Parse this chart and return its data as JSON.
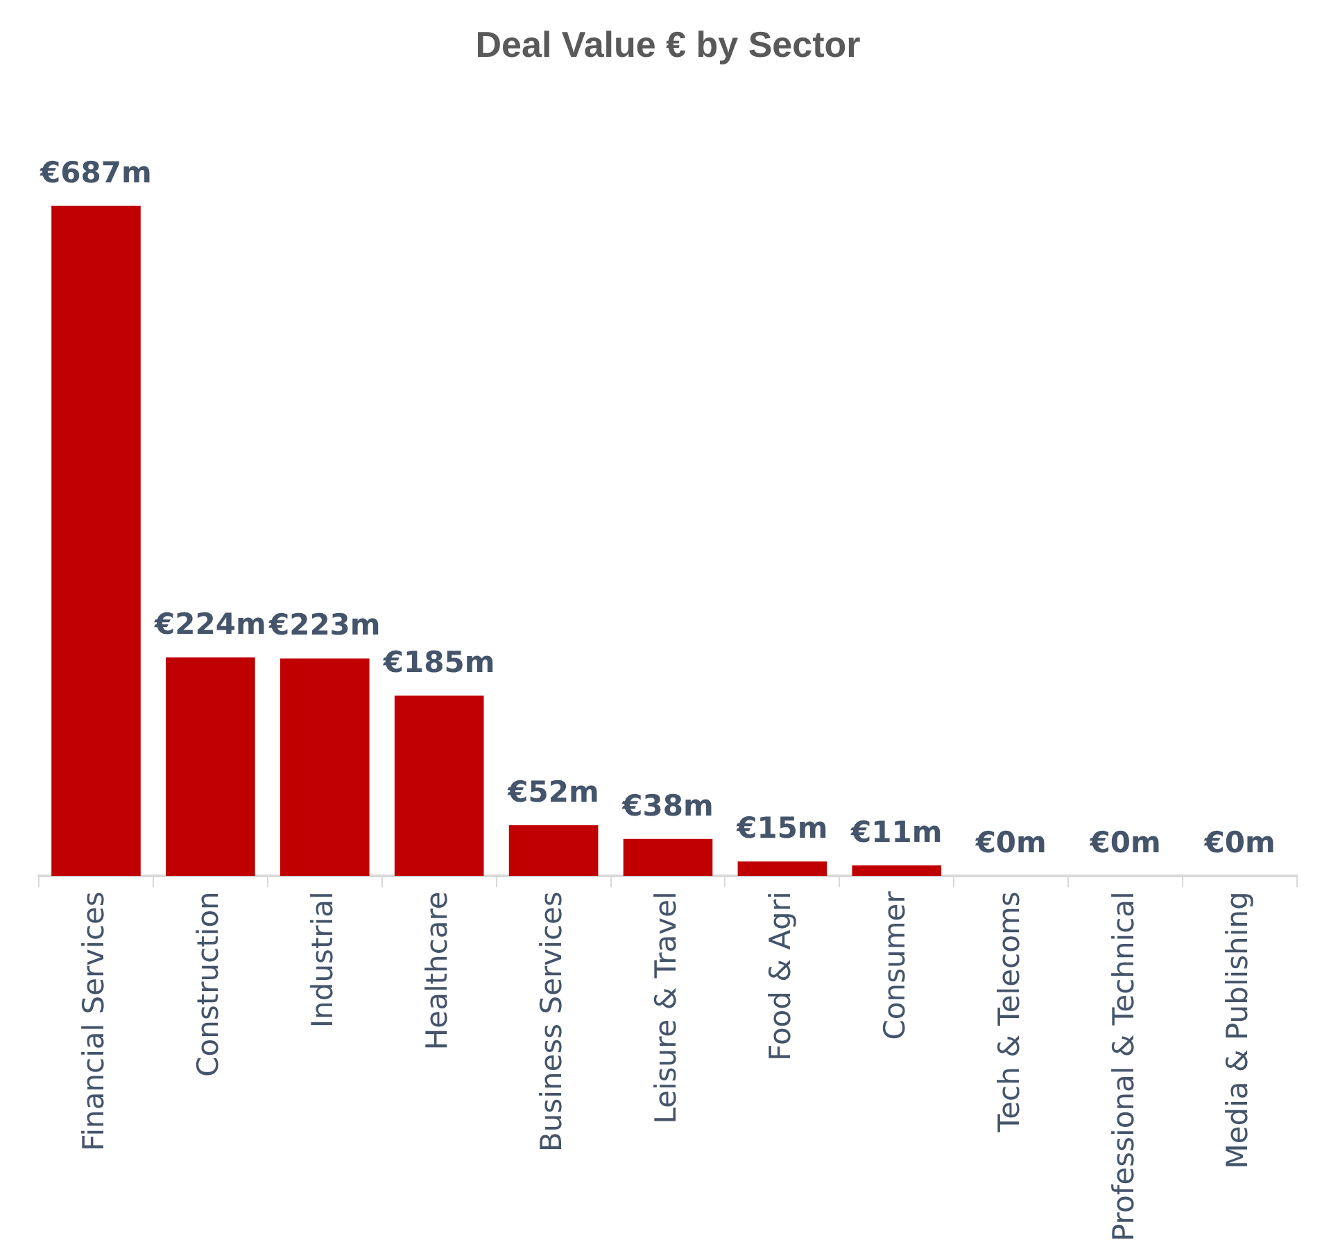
{
  "chart_data": {
    "type": "bar",
    "title": "Deal Value € by Sector",
    "categories": [
      "Financial Services",
      "Construction",
      "Industrial",
      "Healthcare",
      "Business Services",
      "Leisure & Travel",
      "Food & Agri",
      "Consumer",
      "Tech & Telecoms",
      "Professional & Technical",
      "Media & Publishing"
    ],
    "values": [
      687,
      224,
      223,
      185,
      52,
      38,
      15,
      11,
      0,
      0,
      0
    ],
    "value_labels": [
      "€687m",
      "€224m",
      "€223m",
      "€185m",
      "€52m",
      "€38m",
      "€15m",
      "€11m",
      "€0m",
      "€0m",
      "€0m"
    ],
    "color": "#c00000"
  }
}
